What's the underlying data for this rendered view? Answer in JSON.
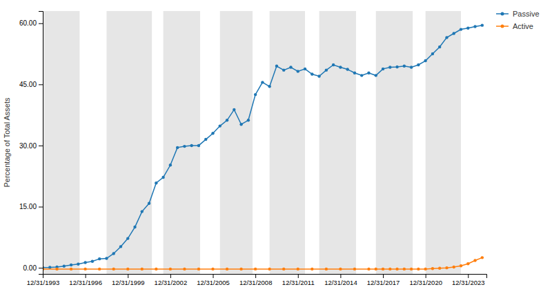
{
  "chart_data": {
    "type": "line",
    "ylabel": "Percentage of Total Assets",
    "xlim": [
      1993.0,
      2024.3
    ],
    "xticks": [
      {
        "value": 1993,
        "label": "12/31/1993"
      },
      {
        "value": 1996,
        "label": "12/31/1996"
      },
      {
        "value": 1999,
        "label": "12/31/1999"
      },
      {
        "value": 2002,
        "label": "12/31/2002"
      },
      {
        "value": 2005,
        "label": "12/31/2005"
      },
      {
        "value": 2008,
        "label": "12/31/2008"
      },
      {
        "value": 2011,
        "label": "12/31/2011"
      },
      {
        "value": 2014,
        "label": "12/31/2014"
      },
      {
        "value": 2017,
        "label": "12/31/2017"
      },
      {
        "value": 2020,
        "label": "12/31/2020"
      },
      {
        "value": 2023,
        "label": "12/31/2023"
      }
    ],
    "ylim": [
      -1.5,
      63
    ],
    "yticks": [
      {
        "value": 0.0,
        "label": "0.00"
      },
      {
        "value": 15.0,
        "label": "15.00"
      },
      {
        "value": 30.0,
        "label": "30.00"
      },
      {
        "value": 45.0,
        "label": "45.00"
      },
      {
        "value": 60.0,
        "label": "60.00"
      }
    ],
    "grid": false,
    "legend": "right",
    "marker": "circle",
    "line_style": "solid",
    "bands": [
      [
        1993.0,
        1995.6
      ],
      [
        1997.5,
        2000.7
      ],
      [
        2001.5,
        2004.1
      ],
      [
        2005.5,
        2007.8
      ],
      [
        2009.0,
        2011.5
      ],
      [
        2012.5,
        2015.1
      ],
      [
        2016.5,
        2019.1
      ],
      [
        2020.0,
        2022.5
      ]
    ],
    "series": [
      {
        "name": "Passive",
        "x": [
          1993.0,
          1993.5,
          1994.0,
          1994.5,
          1995.0,
          1995.5,
          1996.0,
          1996.5,
          1997.0,
          1997.5,
          1998.0,
          1998.5,
          1999.0,
          1999.5,
          2000.0,
          2000.5,
          2001.0,
          2001.5,
          2002.0,
          2002.5,
          2003.0,
          2003.5,
          2004.0,
          2004.5,
          2005.0,
          2005.5,
          2006.0,
          2006.5,
          2007.0,
          2007.5,
          2008.0,
          2008.5,
          2009.0,
          2009.5,
          2010.0,
          2010.5,
          2011.0,
          2011.5,
          2012.0,
          2012.5,
          2013.0,
          2013.5,
          2014.0,
          2014.5,
          2015.0,
          2015.5,
          2016.0,
          2016.5,
          2017.0,
          2017.5,
          2018.0,
          2018.5,
          2019.0,
          2019.5,
          2020.0,
          2020.5,
          2021.0,
          2021.5,
          2022.0,
          2022.5,
          2023.0,
          2023.5,
          2024.0
        ],
        "values": [
          0.05,
          0.1,
          0.2,
          0.4,
          0.7,
          0.9,
          1.3,
          1.6,
          2.2,
          2.3,
          3.5,
          5.2,
          7.2,
          10.0,
          13.8,
          15.8,
          20.8,
          22.2,
          25.2,
          29.5,
          29.8,
          30.0,
          30.0,
          31.5,
          33.0,
          34.8,
          36.2,
          38.8,
          35.2,
          36.2,
          42.5,
          45.5,
          44.5,
          49.5,
          48.5,
          49.2,
          48.2,
          48.8,
          47.5,
          47.0,
          48.5,
          49.8,
          49.2,
          48.7,
          47.8,
          47.2,
          47.8,
          47.2,
          48.8,
          49.2,
          49.3,
          49.5,
          49.2,
          49.8,
          50.8,
          52.5,
          54.2,
          56.5,
          57.5,
          58.5,
          58.8,
          59.2,
          59.5
        ]
      },
      {
        "name": "Active",
        "x": [
          1993.0,
          1994.0,
          1995.0,
          1996.0,
          1997.0,
          1998.0,
          1999.0,
          2000.0,
          2001.0,
          2002.0,
          2003.0,
          2004.0,
          2005.0,
          2006.0,
          2007.0,
          2008.0,
          2009.0,
          2010.0,
          2011.0,
          2012.0,
          2013.0,
          2014.0,
          2015.0,
          2016.0,
          2016.5,
          2017.0,
          2017.5,
          2018.0,
          2018.5,
          2019.0,
          2019.5,
          2020.0,
          2020.5,
          2021.0,
          2021.5,
          2022.0,
          2022.5,
          2023.0,
          2023.5,
          2024.0
        ],
        "values": [
          -0.3,
          -0.3,
          -0.3,
          -0.3,
          -0.3,
          -0.3,
          -0.3,
          -0.3,
          -0.3,
          -0.3,
          -0.3,
          -0.3,
          -0.3,
          -0.3,
          -0.3,
          -0.3,
          -0.3,
          -0.3,
          -0.3,
          -0.3,
          -0.3,
          -0.3,
          -0.3,
          -0.3,
          -0.3,
          -0.3,
          -0.3,
          -0.3,
          -0.3,
          -0.3,
          -0.3,
          -0.3,
          -0.2,
          -0.1,
          0.0,
          0.2,
          0.5,
          1.0,
          1.8,
          2.5
        ]
      }
    ]
  }
}
